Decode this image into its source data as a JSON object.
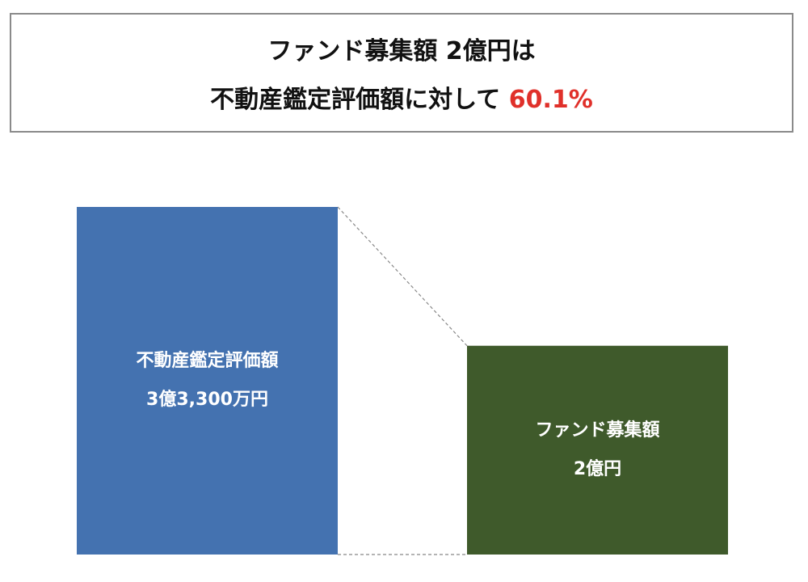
{
  "chart_data": {
    "type": "bar",
    "title": "ファンド募集額 2億円は",
    "subtitle": "不動産鑑定評価額に対して",
    "highlight": "60.1%",
    "categories": [
      "不動産鑑定評価額",
      "ファンド募集額"
    ],
    "values": [
      333000000,
      200000000
    ],
    "value_labels": [
      "3億3,300万円",
      "2億円"
    ],
    "colors": [
      "#4472b0",
      "#3f5a2b"
    ]
  }
}
